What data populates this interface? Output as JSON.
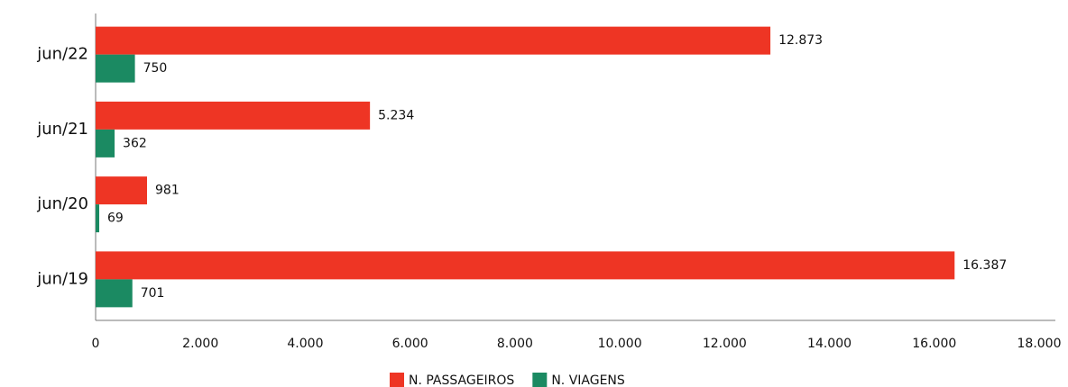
{
  "chart_data": {
    "type": "hbar",
    "categories": [
      "jun/22",
      "jun/21",
      "jun/20",
      "jun/19"
    ],
    "series": [
      {
        "name": "N. PASSAGEIROS",
        "color": "#ee3524",
        "values": [
          12873,
          5234,
          981,
          16387
        ],
        "value_labels": [
          "12.873",
          "5.234",
          "981",
          "16.387"
        ]
      },
      {
        "name": "N. VIAGENS",
        "color": "#1b8a62",
        "values": [
          750,
          362,
          69,
          701
        ],
        "value_labels": [
          "750",
          "362",
          "69",
          "701"
        ]
      }
    ],
    "xlim": [
      0,
      18000
    ],
    "xticks": [
      0,
      {
        "value": 2000,
        "label": "2.000"
      },
      {
        "value": 4000,
        "label": "4.000"
      },
      {
        "value": 6000,
        "label": "6.000"
      },
      {
        "value": 8000,
        "label": "8.000"
      },
      {
        "value": 10000,
        "label": "10.000"
      },
      {
        "value": 12000,
        "label": "12.000"
      },
      {
        "value": 14000,
        "label": "14.000"
      },
      {
        "value": 16000,
        "label": "16.000"
      },
      {
        "value": 18000,
        "label": "18.000"
      }
    ],
    "grid": false,
    "legend": "bottom"
  }
}
